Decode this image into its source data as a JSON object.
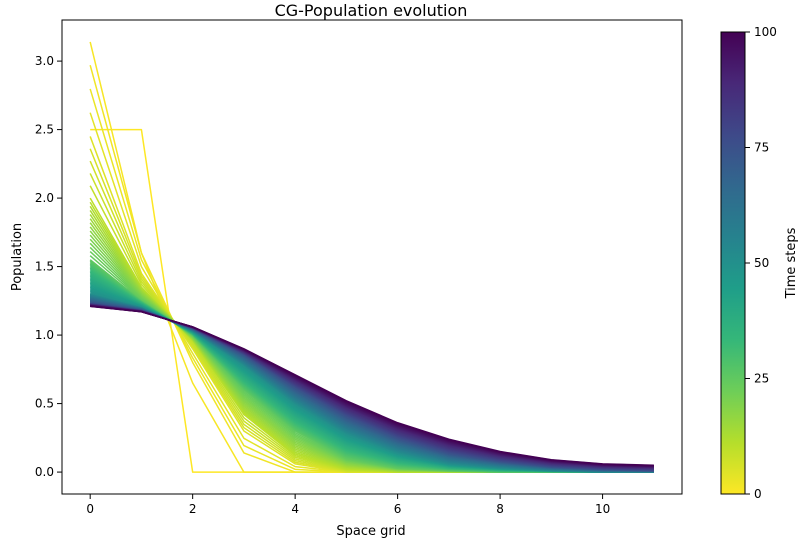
{
  "chart_data": {
    "type": "line",
    "title": "CG-Population evolution",
    "xlabel": "Space grid",
    "ylabel": "Population",
    "colorbar_label": "Time steps",
    "colormap": "viridis (reversed)",
    "colormap_stops": [
      "#fde725",
      "#b5de2b",
      "#6ece58",
      "#35b779",
      "#1f9e89",
      "#26828e",
      "#31688e",
      "#3e4989",
      "#482878",
      "#440154"
    ],
    "xlim": [
      -0.55,
      11.55
    ],
    "ylim": [
      -0.16,
      3.3
    ],
    "x_ticks": [
      0,
      2,
      4,
      6,
      8,
      10
    ],
    "y_ticks": [
      0.0,
      0.5,
      1.0,
      1.5,
      2.0,
      2.5,
      3.0
    ],
    "x_tick_labels": [
      "0",
      "2",
      "4",
      "6",
      "8",
      "10"
    ],
    "y_tick_labels": [
      "0.0",
      "0.5",
      "1.0",
      "1.5",
      "2.0",
      "2.5",
      "3.0"
    ],
    "colorbar_range": [
      0,
      100
    ],
    "colorbar_ticks": [
      0,
      25,
      50,
      75,
      100
    ],
    "colorbar_tick_labels": [
      "0",
      "25",
      "50",
      "75",
      "100"
    ],
    "grid": false,
    "x": [
      0,
      1,
      2,
      3,
      4,
      5,
      6,
      7,
      8,
      9,
      10,
      11
    ],
    "series_count": 101,
    "series_key_frames": [
      {
        "step": 0,
        "values": [
          2.5,
          2.5,
          0.0,
          0.0,
          0.0,
          0.0,
          0.0,
          0.0,
          0.0,
          0.0,
          0.0,
          0.0
        ]
      },
      {
        "step": 1,
        "values": [
          3.14,
          1.6,
          0.65,
          0.0,
          0.0,
          0.0,
          0.0,
          0.0,
          0.0,
          0.0,
          0.0,
          0.0
        ]
      },
      {
        "step": 2,
        "values": [
          2.97,
          1.6,
          0.8,
          0.14,
          0.0,
          0.0,
          0.0,
          0.0,
          0.0,
          0.0,
          0.0,
          0.0
        ]
      },
      {
        "step": 5,
        "values": [
          2.45,
          1.45,
          0.9,
          0.3,
          0.06,
          0.0,
          0.0,
          0.0,
          0.0,
          0.0,
          0.0,
          0.0
        ]
      },
      {
        "step": 10,
        "values": [
          2.0,
          1.35,
          0.96,
          0.42,
          0.12,
          0.02,
          0.0,
          0.0,
          0.0,
          0.0,
          0.0,
          0.0
        ]
      },
      {
        "step": 25,
        "values": [
          1.55,
          1.25,
          1.0,
          0.6,
          0.3,
          0.1,
          0.03,
          0.01,
          0.0,
          0.0,
          0.0,
          0.0
        ]
      },
      {
        "step": 50,
        "values": [
          1.3,
          1.2,
          1.03,
          0.78,
          0.5,
          0.28,
          0.14,
          0.06,
          0.03,
          0.01,
          0.0,
          0.0
        ]
      },
      {
        "step": 75,
        "values": [
          1.23,
          1.18,
          1.05,
          0.86,
          0.62,
          0.41,
          0.25,
          0.14,
          0.08,
          0.04,
          0.02,
          0.01
        ]
      },
      {
        "step": 100,
        "values": [
          1.21,
          1.17,
          1.06,
          0.9,
          0.71,
          0.52,
          0.36,
          0.24,
          0.15,
          0.09,
          0.06,
          0.05
        ]
      }
    ]
  }
}
